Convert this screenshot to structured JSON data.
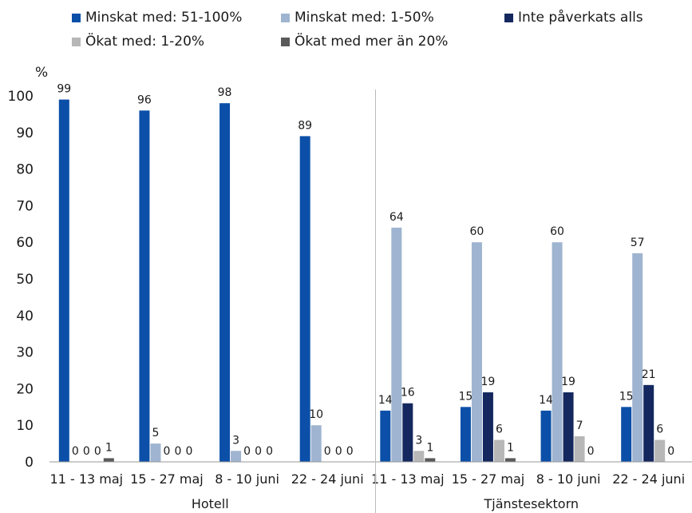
{
  "chart_data": {
    "type": "bar",
    "title": "",
    "ylabel": "%",
    "xlabel": "",
    "ylim": [
      0,
      100
    ],
    "yticks": [
      0,
      10,
      20,
      30,
      40,
      50,
      60,
      70,
      80,
      90,
      100
    ],
    "grid": false,
    "legend_position": "top",
    "groups": [
      "Hotell",
      "Tjänstesektorn"
    ],
    "categories": [
      "11 - 13 maj",
      "15 - 27 maj",
      "8 - 10 juni",
      "22 - 24 juni",
      "11 - 13 maj",
      "15 - 27 maj",
      "8 - 10 juni",
      "22 - 24 juni"
    ],
    "series": [
      {
        "name": "Minskat med: 51-100%",
        "color": "#0b4fa8",
        "values": [
          99,
          96,
          98,
          89,
          14,
          15,
          14,
          15
        ]
      },
      {
        "name": "Minskat med: 1-50%",
        "color": "#9fb4d0",
        "values": [
          0,
          5,
          3,
          10,
          64,
          60,
          60,
          57
        ]
      },
      {
        "name": "Inte påverkats alls",
        "color": "#14285f",
        "values": [
          0,
          0,
          0,
          0,
          16,
          19,
          19,
          21
        ]
      },
      {
        "name": "Ökat med: 1-20%",
        "color": "#b7b7b7",
        "values": [
          0,
          0,
          0,
          0,
          3,
          6,
          7,
          6
        ]
      },
      {
        "name": "Ökat med mer än 20%",
        "color": "#5a5a5a",
        "values": [
          1,
          0,
          0,
          0,
          1,
          1,
          0,
          0
        ]
      }
    ]
  }
}
